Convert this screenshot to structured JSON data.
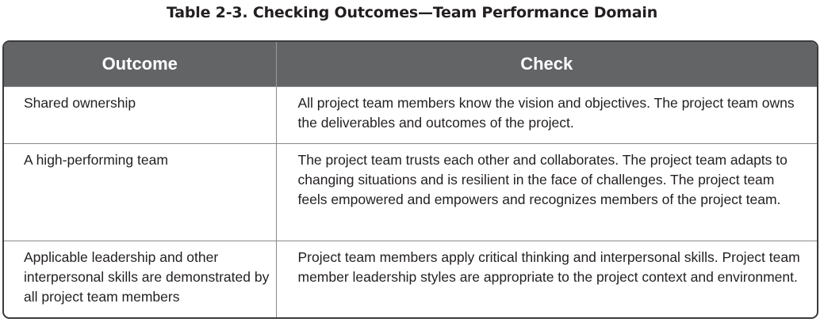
{
  "caption": "Table 2-3. Checking Outcomes—Team Performance Domain",
  "table": {
    "headers": [
      "Outcome",
      "Check"
    ],
    "rows": [
      {
        "outcome": "Shared ownership",
        "check": "All project team members know the vision and objectives. The project team owns the deliverables and outcomes of the project."
      },
      {
        "outcome": "A high-performing team",
        "check": "The project team trusts each other and collaborates. The project team adapts to changing situations and is resilient in the face of challenges. The project team feels empowered and empowers and recognizes members of the project team."
      },
      {
        "outcome": "Applicable leadership and other interpersonal skills are demonstrated by all project team members",
        "check": "Project team members apply critical thinking and interpersonal skills. Project team member leadership styles are appropriate to the project context and environment."
      }
    ]
  },
  "colors": {
    "header_bg": "#636466",
    "header_text": "#ffffff",
    "border": "#3b3b3b",
    "text": "#231f20"
  }
}
